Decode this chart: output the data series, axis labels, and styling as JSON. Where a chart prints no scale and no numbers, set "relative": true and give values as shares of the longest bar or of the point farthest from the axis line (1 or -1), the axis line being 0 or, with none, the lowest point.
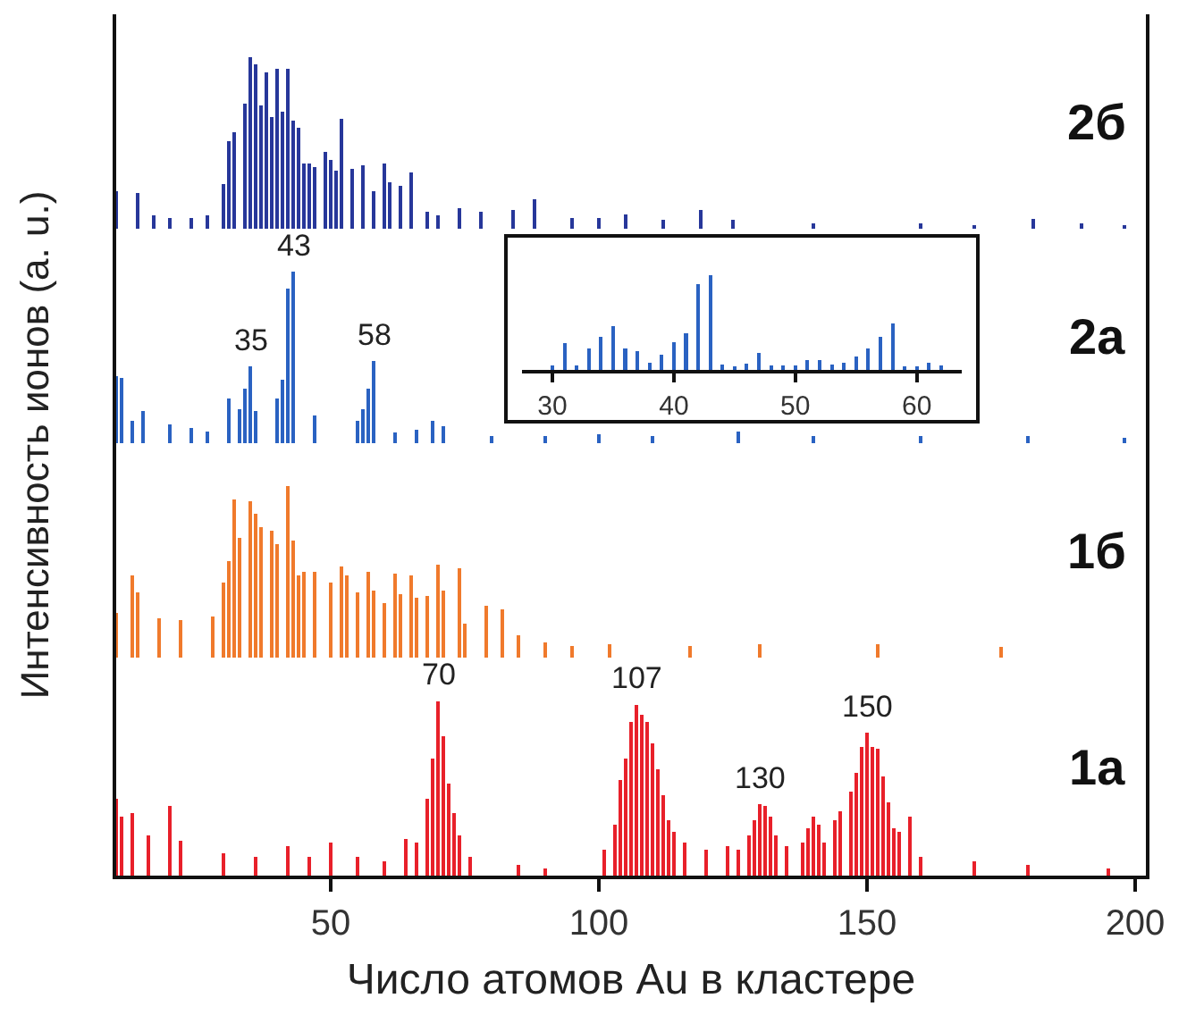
{
  "chart_data": [
    {
      "type": "bar",
      "relative": true,
      "xlim": [
        10,
        202
      ],
      "tick_labels": false,
      "annotations": [
        "2б"
      ],
      "series": [
        {
          "color": "#27379a",
          "x": [
            10,
            14,
            17,
            20,
            24,
            27,
            30,
            31,
            32,
            34,
            35,
            36,
            37,
            38,
            39,
            40,
            41,
            42,
            43,
            44,
            45,
            46,
            47,
            49,
            50,
            51,
            52,
            54,
            56,
            58,
            60,
            61,
            63,
            65,
            68,
            70,
            74,
            78,
            84,
            88,
            95,
            100,
            105,
            112,
            119,
            125,
            140,
            160,
            170,
            181,
            190,
            198
          ],
          "values": [
            0.22,
            0.21,
            0.08,
            0.06,
            0.06,
            0.08,
            0.26,
            0.51,
            0.56,
            0.73,
            1.0,
            0.96,
            0.72,
            0.91,
            0.65,
            0.93,
            0.68,
            0.93,
            0.63,
            0.59,
            0.38,
            0.38,
            0.36,
            0.45,
            0.4,
            0.34,
            0.64,
            0.35,
            0.37,
            0.22,
            0.38,
            0.27,
            0.25,
            0.33,
            0.1,
            0.08,
            0.12,
            0.1,
            0.11,
            0.17,
            0.06,
            0.06,
            0.085,
            0.05,
            0.11,
            0.05,
            0.03,
            0.03,
            0.02,
            0.055,
            0.03,
            0.02
          ]
        }
      ]
    },
    {
      "type": "bar",
      "relative": true,
      "xlim": [
        10,
        202
      ],
      "tick_labels": false,
      "annotations": [
        "2а",
        {
          "text": "35",
          "x": 35,
          "y": 0.45
        },
        {
          "text": "43",
          "x": 43,
          "y": 1.0
        },
        {
          "text": "58",
          "x": 58,
          "y": 0.48
        }
      ],
      "series": [
        {
          "color": "#2a62c2",
          "x": [
            10,
            11,
            13,
            15,
            20,
            24,
            27,
            31,
            33,
            34,
            35,
            36,
            40,
            41,
            42,
            43,
            47,
            55,
            56,
            57,
            58,
            62,
            66,
            69,
            71,
            80,
            90,
            100,
            110,
            126,
            140,
            160,
            180,
            198
          ],
          "values": [
            0.39,
            0.38,
            0.13,
            0.19,
            0.11,
            0.09,
            0.07,
            0.26,
            0.2,
            0.32,
            0.45,
            0.19,
            0.26,
            0.37,
            0.9,
            1.0,
            0.16,
            0.13,
            0.2,
            0.32,
            0.48,
            0.06,
            0.08,
            0.13,
            0.1,
            0.04,
            0.04,
            0.05,
            0.04,
            0.07,
            0.04,
            0.04,
            0.04,
            0.03
          ]
        }
      ]
    },
    {
      "type": "bar",
      "relative": true,
      "xlim": [
        27.5,
        63.7
      ],
      "xticks": [
        30,
        40,
        50,
        60
      ],
      "tick_labels": "x",
      "series": [
        {
          "color": "#2a62c2",
          "x": [
            30,
            31,
            32,
            33,
            34,
            35,
            36,
            37,
            38,
            39,
            40,
            41,
            42,
            43,
            44,
            45,
            46,
            47,
            48,
            49,
            50,
            51,
            52,
            53,
            54,
            55,
            56,
            57,
            58,
            59,
            60,
            61,
            62
          ],
          "values": [
            0.05,
            0.28,
            0.05,
            0.23,
            0.35,
            0.46,
            0.23,
            0.2,
            0.08,
            0.16,
            0.29,
            0.39,
            0.91,
            1.0,
            0.06,
            0.04,
            0.07,
            0.18,
            0.05,
            0.05,
            0.05,
            0.1,
            0.1,
            0.06,
            0.08,
            0.14,
            0.23,
            0.35,
            0.49,
            0.04,
            0.04,
            0.08,
            0.05
          ]
        }
      ]
    },
    {
      "type": "bar",
      "relative": true,
      "xlim": [
        10,
        202
      ],
      "tick_labels": false,
      "annotations": [
        "1б"
      ],
      "series": [
        {
          "color": "#f07a2c",
          "x": [
            10,
            13,
            14,
            18,
            22,
            28,
            30,
            31,
            32,
            33,
            35,
            36,
            37,
            39,
            40,
            42,
            43,
            44,
            45,
            47,
            50,
            52,
            53,
            55,
            57,
            58,
            60,
            62,
            63,
            65,
            66,
            68,
            70,
            71,
            74,
            75,
            79,
            82,
            85,
            90,
            95,
            102,
            117,
            130,
            152,
            175
          ],
          "values": [
            0.26,
            0.48,
            0.38,
            0.23,
            0.22,
            0.24,
            0.44,
            0.56,
            0.92,
            0.7,
            0.91,
            0.84,
            0.76,
            0.74,
            0.66,
            1.0,
            0.68,
            0.48,
            0.5,
            0.5,
            0.44,
            0.53,
            0.48,
            0.38,
            0.5,
            0.39,
            0.32,
            0.49,
            0.37,
            0.48,
            0.35,
            0.36,
            0.54,
            0.39,
            0.52,
            0.2,
            0.3,
            0.28,
            0.13,
            0.09,
            0.07,
            0.08,
            0.07,
            0.08,
            0.08,
            0.06
          ]
        }
      ]
    },
    {
      "type": "bar",
      "relative": true,
      "xlim": [
        10,
        202
      ],
      "xticks": [
        50,
        100,
        150,
        200
      ],
      "tick_labels": "x",
      "xlabel": "Число атомов Au в кластере",
      "ylabel": "Интенсивность ионов (a. u.)",
      "annotations": [
        "1а",
        {
          "text": "70",
          "x": 70,
          "y": 1.0
        },
        {
          "text": "107",
          "x": 107,
          "y": 0.98
        },
        {
          "text": "130",
          "x": 130,
          "y": 0.41
        },
        {
          "text": "150",
          "x": 150,
          "y": 0.82
        }
      ],
      "series": [
        {
          "color": "#e8202a",
          "x": [
            10,
            11,
            13,
            16,
            20,
            22,
            30,
            36,
            42,
            46,
            50,
            55,
            60,
            64,
            66,
            68,
            69,
            70,
            71,
            72,
            73,
            74,
            76,
            85,
            90,
            101,
            103,
            104,
            105,
            106,
            107,
            108,
            109,
            110,
            111,
            112,
            113,
            114,
            116,
            120,
            124,
            126,
            128,
            129,
            130,
            131,
            132,
            133,
            135,
            138,
            139,
            140,
            141,
            142,
            144,
            145,
            147,
            148,
            149,
            150,
            151,
            152,
            153,
            154,
            155,
            156,
            158,
            160,
            170,
            180,
            195
          ],
          "values": [
            0.44,
            0.34,
            0.36,
            0.23,
            0.4,
            0.2,
            0.13,
            0.11,
            0.17,
            0.11,
            0.19,
            0.11,
            0.08,
            0.21,
            0.19,
            0.44,
            0.67,
            1.0,
            0.8,
            0.53,
            0.36,
            0.23,
            0.11,
            0.06,
            0.04,
            0.15,
            0.29,
            0.55,
            0.67,
            0.88,
            0.98,
            0.92,
            0.88,
            0.76,
            0.61,
            0.46,
            0.32,
            0.25,
            0.19,
            0.15,
            0.17,
            0.15,
            0.23,
            0.32,
            0.41,
            0.4,
            0.34,
            0.23,
            0.17,
            0.19,
            0.27,
            0.34,
            0.29,
            0.19,
            0.32,
            0.37,
            0.48,
            0.59,
            0.74,
            0.82,
            0.74,
            0.73,
            0.57,
            0.42,
            0.27,
            0.25,
            0.34,
            0.11,
            0.08,
            0.06,
            0.04
          ]
        }
      ]
    }
  ]
}
